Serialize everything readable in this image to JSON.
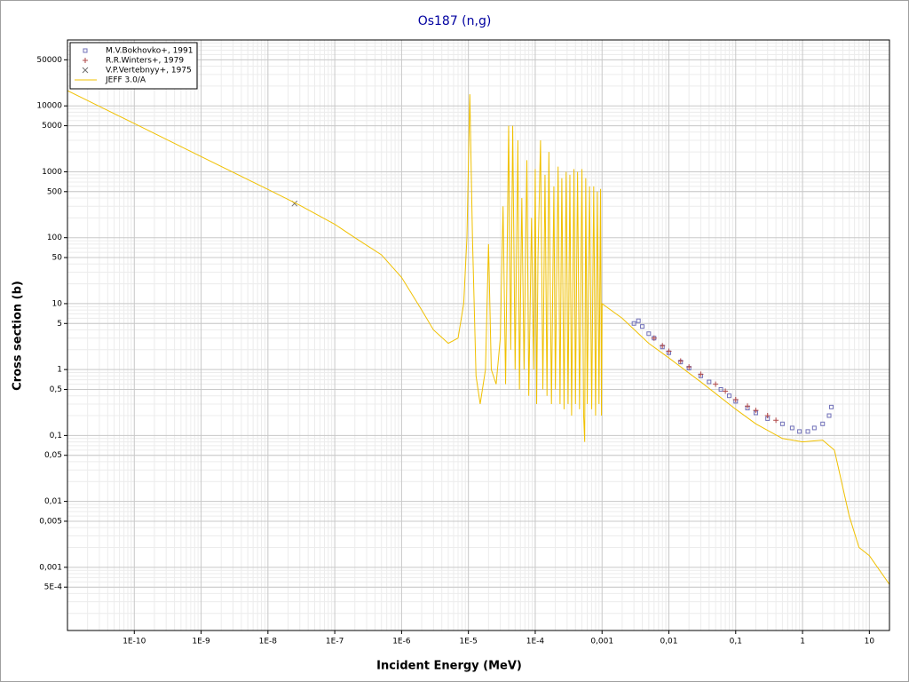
{
  "chart_data": {
    "type": "line",
    "title": "Os187 (n,g)",
    "x_label": "Incident Energy (MeV)",
    "y_label": "Cross section (b)",
    "xscale": "log",
    "yscale": "log",
    "xlim": [
      1e-11,
      20
    ],
    "ylim": [
      0.00011,
      100000
    ],
    "xticks": [
      {
        "value": 1e-10,
        "label": "1E-10"
      },
      {
        "value": 1e-09,
        "label": "1E-9"
      },
      {
        "value": 1e-08,
        "label": "1E-8"
      },
      {
        "value": 1e-07,
        "label": "1E-7"
      },
      {
        "value": 1e-06,
        "label": "1E-6"
      },
      {
        "value": 1e-05,
        "label": "1E-5"
      },
      {
        "value": 0.0001,
        "label": "1E-4"
      },
      {
        "value": 0.001,
        "label": "0,001"
      },
      {
        "value": 0.01,
        "label": "0,01"
      },
      {
        "value": 0.1,
        "label": "0,1"
      },
      1,
      10
    ],
    "yticks": [
      50000,
      10000,
      5000,
      1000,
      500,
      100,
      50,
      10,
      5,
      1,
      {
        "value": 0.5,
        "label": "0,5"
      },
      {
        "value": 0.1,
        "label": "0,1"
      },
      {
        "value": 0.05,
        "label": "0,05"
      },
      {
        "value": 0.01,
        "label": "0,01"
      },
      {
        "value": 0.005,
        "label": "0,005"
      },
      {
        "value": 0.001,
        "label": "0,001"
      },
      {
        "value": 0.0005,
        "label": "5E-4"
      }
    ],
    "grid": true,
    "minor_grid": true,
    "legend": "upper left",
    "series": [
      {
        "name": "M.V.Bokhovko+, 1991",
        "color": "#7070b8",
        "marker": "square",
        "x": [
          0.003,
          0.0035,
          0.004,
          0.005,
          0.006,
          0.008,
          0.01,
          0.015,
          0.02,
          0.03,
          0.04,
          0.06,
          0.08,
          0.1,
          0.15,
          0.2,
          0.3,
          0.5,
          0.7,
          0.9,
          1.2,
          1.5,
          2,
          2.5,
          2.7
        ],
        "values": [
          5,
          5.5,
          4.5,
          3.5,
          3,
          2.2,
          1.8,
          1.3,
          1.05,
          0.8,
          0.65,
          0.5,
          0.4,
          0.33,
          0.26,
          0.22,
          0.18,
          0.15,
          0.13,
          0.115,
          0.115,
          0.13,
          0.15,
          0.2,
          0.27
        ]
      },
      {
        "name": "R.R.Winters+, 1979",
        "color": "#b04848",
        "marker": "plus",
        "x": [
          0.006,
          0.008,
          0.01,
          0.015,
          0.02,
          0.03,
          0.05,
          0.07,
          0.1,
          0.15,
          0.2,
          0.3,
          0.4
        ],
        "values": [
          3.0,
          2.3,
          1.9,
          1.35,
          1.1,
          0.85,
          0.6,
          0.47,
          0.35,
          0.28,
          0.24,
          0.2,
          0.17
        ]
      },
      {
        "name": "V.P.Vertebnyy+, 1975",
        "color": "#707070",
        "marker": "cross",
        "x": [
          2.5e-08
        ],
        "values": [
          330
        ]
      },
      {
        "name": "JEFF 3.0/A",
        "color": "#f0c000",
        "marker": "line",
        "x": [
          1e-11,
          1e-10,
          1e-09,
          1e-08,
          3e-08,
          1e-07,
          2e-07,
          5e-07,
          1e-06,
          2e-06,
          3e-06,
          5e-06,
          7e-06,
          8.5e-06,
          9.5e-06,
          1.05e-05,
          1.15e-05,
          1.3e-05,
          1.5e-05,
          1.8e-05,
          2e-05,
          2.2e-05,
          2.6e-05,
          3e-05,
          3.3e-05,
          3.6e-05,
          4e-05,
          4.3e-05,
          4.6e-05,
          5e-05,
          5.5e-05,
          5.8e-05,
          6.3e-05,
          6.8e-05,
          7.5e-05,
          8e-05,
          8.8e-05,
          9.5e-05,
          0.0001,
          0.000105,
          0.00011,
          0.00012,
          0.00013,
          0.00014,
          0.00015,
          0.00016,
          0.000175,
          0.00019,
          0.0002,
          0.00022,
          0.000235,
          0.00025,
          0.00027,
          0.00029,
          0.00031,
          0.00033,
          0.00035,
          0.00038,
          0.0004,
          0.00043,
          0.00046,
          0.0005,
          0.00053,
          0.00055,
          0.00057,
          0.0006,
          0.00065,
          0.0007,
          0.00075,
          0.0008,
          0.00085,
          0.0009,
          0.00095,
          0.00098,
          0.001,
          0.002,
          0.005,
          0.01,
          0.03,
          0.1,
          0.2,
          0.5,
          1,
          2,
          3,
          5,
          7,
          10,
          20
        ],
        "values": [
          17000,
          5400,
          1700,
          540,
          310,
          160,
          100,
          55,
          25,
          8,
          4,
          2.5,
          3,
          10,
          100,
          15000,
          100,
          0.8,
          0.3,
          1,
          80,
          1,
          0.6,
          3,
          300,
          0.6,
          5000,
          2,
          5000,
          1,
          3000,
          0.5,
          400,
          1,
          1500,
          0.4,
          200,
          1,
          1100,
          0.3,
          50,
          3000,
          0.5,
          900,
          0.4,
          2000,
          0.3,
          600,
          0.5,
          1200,
          0.3,
          800,
          0.25,
          1000,
          0.3,
          900,
          0.2,
          1100,
          0.3,
          1000,
          0.25,
          1100,
          0.2,
          0.08,
          800,
          0.3,
          600,
          0.25,
          600,
          0.2,
          500,
          0.3,
          550,
          0.2,
          10,
          6,
          2.5,
          1.5,
          0.65,
          0.25,
          0.15,
          0.09,
          0.08,
          0.085,
          0.06,
          0.006,
          0.002,
          0.0015,
          0.00055
        ]
      }
    ]
  }
}
